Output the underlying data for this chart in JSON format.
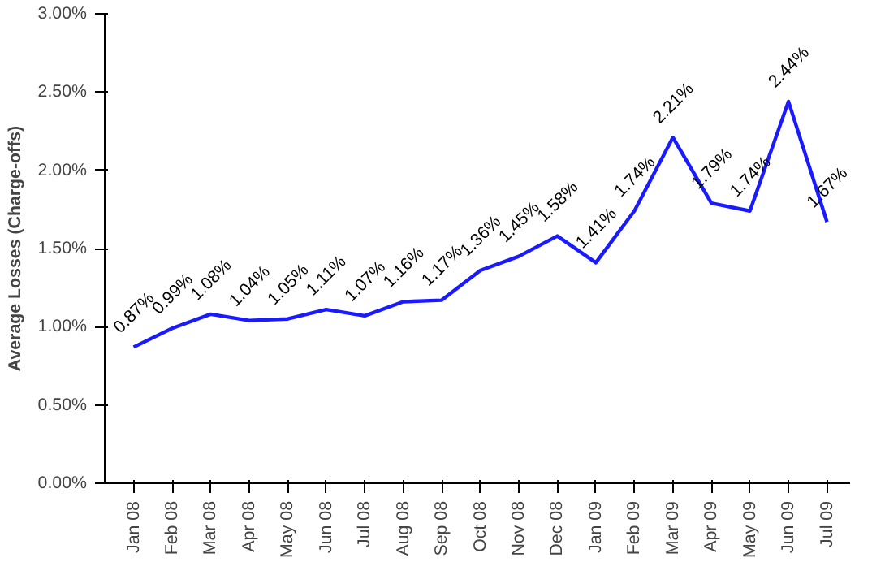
{
  "chart_data": {
    "type": "line",
    "ylabel": "Average Losses (Charge-offs)",
    "categories": [
      "Jan 08",
      "Feb 08",
      "Mar 08",
      "Apr 08",
      "May 08",
      "Jun 08",
      "Jul 08",
      "Aug 08",
      "Sep 08",
      "Oct 08",
      "Nov 08",
      "Dec 08",
      "Jan 09",
      "Feb 09",
      "Mar 09",
      "Apr 09",
      "May 09",
      "Jun 09",
      "Jul 09"
    ],
    "series": [
      {
        "color": "#1a1aff",
        "values": [
          0.87,
          0.99,
          1.08,
          1.04,
          1.05,
          1.11,
          1.07,
          1.16,
          1.17,
          1.36,
          1.45,
          1.58,
          1.41,
          1.74,
          2.21,
          1.79,
          1.74,
          2.44,
          1.67
        ],
        "value_labels": [
          "0.87%",
          "0.99%",
          "1.08%",
          "1.04%",
          "1.05%",
          "1.11%",
          "1.07%",
          "1.16%",
          "1.17%",
          "1.36%",
          "1.45%",
          "1.58%",
          "1.41%",
          "1.74%",
          "2.21%",
          "1.79%",
          "1.74%",
          "2.44%",
          "1.67%"
        ]
      }
    ],
    "ylim": [
      0,
      3
    ],
    "yticks": [
      {
        "value": 0,
        "label": "0.00%"
      },
      {
        "value": 0.5,
        "label": "0.50%"
      },
      {
        "value": 1,
        "label": "1.00%"
      },
      {
        "value": 1.5,
        "label": "1.50%"
      },
      {
        "value": 2,
        "label": "2.00%"
      },
      {
        "value": 2.5,
        "label": "2.50%"
      },
      {
        "value": 3,
        "label": "3.00%"
      }
    ],
    "grid": false,
    "marker": "none",
    "line_style": "solid"
  }
}
